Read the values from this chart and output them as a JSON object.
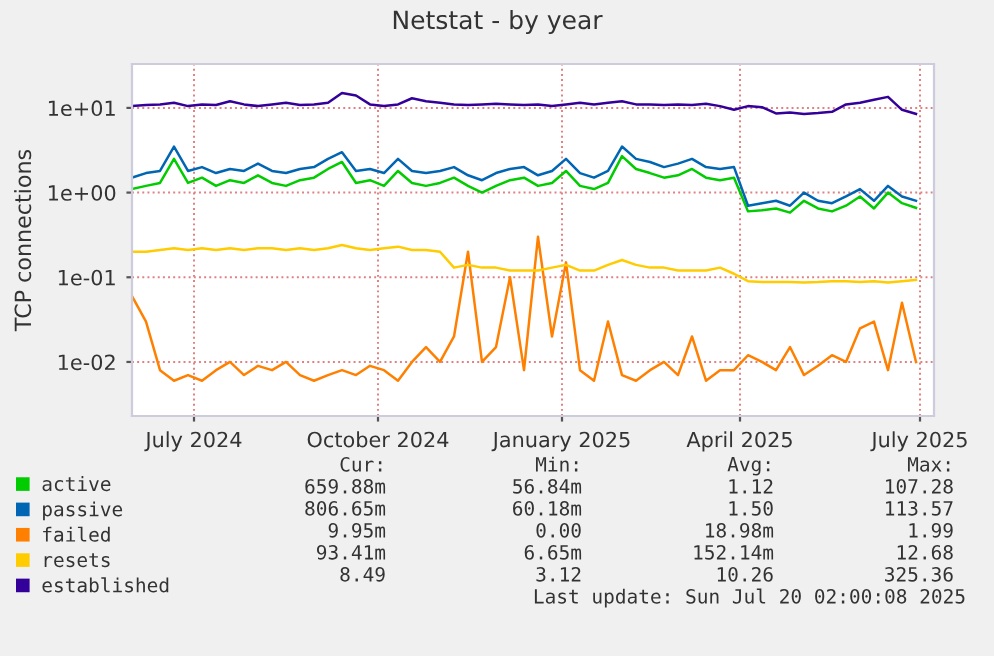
{
  "chart_data": {
    "type": "line",
    "title": "Netstat - by year",
    "ylabel": "TCP connections",
    "x": [
      "2024-06-15",
      "2024-06-22",
      "2024-06-29",
      "2024-07-06",
      "2024-07-13",
      "2024-07-20",
      "2024-07-27",
      "2024-08-03",
      "2024-08-10",
      "2024-08-17",
      "2024-08-24",
      "2024-08-31",
      "2024-09-07",
      "2024-09-14",
      "2024-09-21",
      "2024-09-28",
      "2024-10-05",
      "2024-10-12",
      "2024-10-19",
      "2024-10-26",
      "2024-11-02",
      "2024-11-09",
      "2024-11-16",
      "2024-11-23",
      "2024-11-30",
      "2024-12-07",
      "2024-12-14",
      "2024-12-21",
      "2024-12-28",
      "2025-01-04",
      "2025-01-11",
      "2025-01-18",
      "2025-01-25",
      "2025-02-01",
      "2025-02-08",
      "2025-02-15",
      "2025-02-22",
      "2025-03-01",
      "2025-03-08",
      "2025-03-15",
      "2025-03-22",
      "2025-03-29",
      "2025-04-05",
      "2025-04-12",
      "2025-04-19",
      "2025-04-26",
      "2025-05-03",
      "2025-05-10",
      "2025-05-17",
      "2025-05-24",
      "2025-05-31",
      "2025-06-07",
      "2025-06-14",
      "2025-06-21",
      "2025-06-28",
      "2025-07-05",
      "2025-07-12"
    ],
    "series": [
      {
        "name": "active",
        "color": "#00cc00",
        "values": [
          1.1,
          1.2,
          1.3,
          2.5,
          1.3,
          1.5,
          1.2,
          1.4,
          1.3,
          1.6,
          1.3,
          1.2,
          1.4,
          1.5,
          1.9,
          2.3,
          1.3,
          1.4,
          1.2,
          1.8,
          1.3,
          1.2,
          1.3,
          1.5,
          1.2,
          1,
          1.2,
          1.4,
          1.5,
          1.2,
          1.3,
          1.8,
          1.2,
          1.1,
          1.3,
          2.7,
          1.9,
          1.7,
          1.5,
          1.6,
          1.9,
          1.5,
          1.4,
          1.5,
          0.6,
          0.62,
          0.65,
          0.58,
          0.8,
          0.65,
          0.6,
          0.7,
          0.9,
          0.65,
          1,
          0.75,
          0.66
        ]
      },
      {
        "name": "passive",
        "color": "#0066b3",
        "values": [
          1.5,
          1.7,
          1.8,
          3.5,
          1.8,
          2,
          1.7,
          1.9,
          1.8,
          2.2,
          1.8,
          1.7,
          1.9,
          2,
          2.5,
          3,
          1.8,
          1.9,
          1.7,
          2.5,
          1.8,
          1.7,
          1.8,
          2,
          1.6,
          1.4,
          1.7,
          1.9,
          2,
          1.6,
          1.8,
          2.5,
          1.7,
          1.5,
          1.8,
          3.5,
          2.5,
          2.3,
          2,
          2.2,
          2.5,
          2,
          1.9,
          2,
          0.7,
          0.75,
          0.8,
          0.7,
          1,
          0.8,
          0.75,
          0.9,
          1.1,
          0.8,
          1.2,
          0.9,
          0.8
        ]
      },
      {
        "name": "failed",
        "color": "#ff8000",
        "values": [
          0.06,
          0.03,
          0.008,
          0.006,
          0.007,
          0.006,
          0.008,
          0.01,
          0.007,
          0.009,
          0.008,
          0.01,
          0.007,
          0.006,
          0.007,
          0.008,
          0.007,
          0.009,
          0.008,
          0.006,
          0.01,
          0.015,
          0.01,
          0.02,
          0.2,
          0.01,
          0.015,
          0.1,
          0.008,
          0.3,
          0.02,
          0.15,
          0.008,
          0.006,
          0.03,
          0.007,
          0.006,
          0.008,
          0.01,
          0.007,
          0.02,
          0.006,
          0.008,
          0.008,
          0.012,
          0.01,
          0.008,
          0.015,
          0.007,
          0.009,
          0.012,
          0.01,
          0.025,
          0.03,
          0.008,
          0.05,
          0.01
        ]
      },
      {
        "name": "resets",
        "color": "#ffcc00",
        "values": [
          0.2,
          0.2,
          0.21,
          0.22,
          0.21,
          0.22,
          0.21,
          0.22,
          0.21,
          0.22,
          0.22,
          0.21,
          0.22,
          0.21,
          0.22,
          0.24,
          0.22,
          0.21,
          0.22,
          0.23,
          0.21,
          0.21,
          0.2,
          0.13,
          0.14,
          0.13,
          0.13,
          0.12,
          0.12,
          0.12,
          0.13,
          0.14,
          0.12,
          0.12,
          0.14,
          0.16,
          0.14,
          0.13,
          0.13,
          0.12,
          0.12,
          0.12,
          0.13,
          0.11,
          0.09,
          0.088,
          0.088,
          0.088,
          0.087,
          0.088,
          0.09,
          0.09,
          0.088,
          0.09,
          0.087,
          0.09,
          0.093
        ]
      },
      {
        "name": "established",
        "color": "#330099",
        "values": [
          10.5,
          10.8,
          11,
          11.5,
          10.5,
          11,
          10.8,
          12,
          11,
          10.5,
          11,
          11.5,
          10.8,
          11,
          11.5,
          15,
          14,
          11,
          10.5,
          11,
          13,
          12,
          11.5,
          11,
          10.8,
          11,
          11.2,
          11,
          10.8,
          11,
          10.5,
          11,
          11.5,
          11,
          11.5,
          12,
          11,
          11,
          10.8,
          11,
          10.8,
          11.2,
          10.5,
          9.5,
          10.5,
          10.2,
          8.6,
          8.8,
          8.5,
          8.7,
          9,
          11,
          11.5,
          12.5,
          13.5,
          9.5,
          8.5
        ]
      }
    ],
    "log": "y",
    "ylim": [
      0.0023,
      33
    ],
    "yticks": [
      {
        "value": 0.01,
        "label": "1e-02"
      },
      {
        "value": 0.1,
        "label": "1e-01"
      },
      {
        "value": 1,
        "label": "1e+00"
      },
      {
        "value": 10,
        "label": "1e+01"
      }
    ],
    "xlim": [
      "2024-06-15",
      "2025-07-21"
    ],
    "xticks": [
      {
        "value": "2024-07-16",
        "label": "July 2024"
      },
      {
        "value": "2024-10-16",
        "label": "October 2024"
      },
      {
        "value": "2025-01-16",
        "label": "January 2025"
      },
      {
        "value": "2025-04-15",
        "label": "April 2025"
      },
      {
        "value": "2025-07-14",
        "label": "July 2025"
      }
    ],
    "grid": true,
    "legend": "bottom",
    "marker": "none",
    "line_style": "solid",
    "annotations": [
      "Cur:",
      "Min:",
      "Avg:",
      "Max:",
      "659.88m",
      "56.84m",
      "1.12",
      "107.28",
      "806.65m",
      "60.18m",
      "1.50",
      "113.57",
      "9.95m",
      "0.00",
      "18.98m",
      "1.99",
      "93.41m",
      "6.65m",
      "152.14m",
      "12.68",
      "8.49",
      "3.12",
      "10.26",
      "325.36",
      "Last update: Sun Jul 20 02:00:08 2025"
    ]
  }
}
